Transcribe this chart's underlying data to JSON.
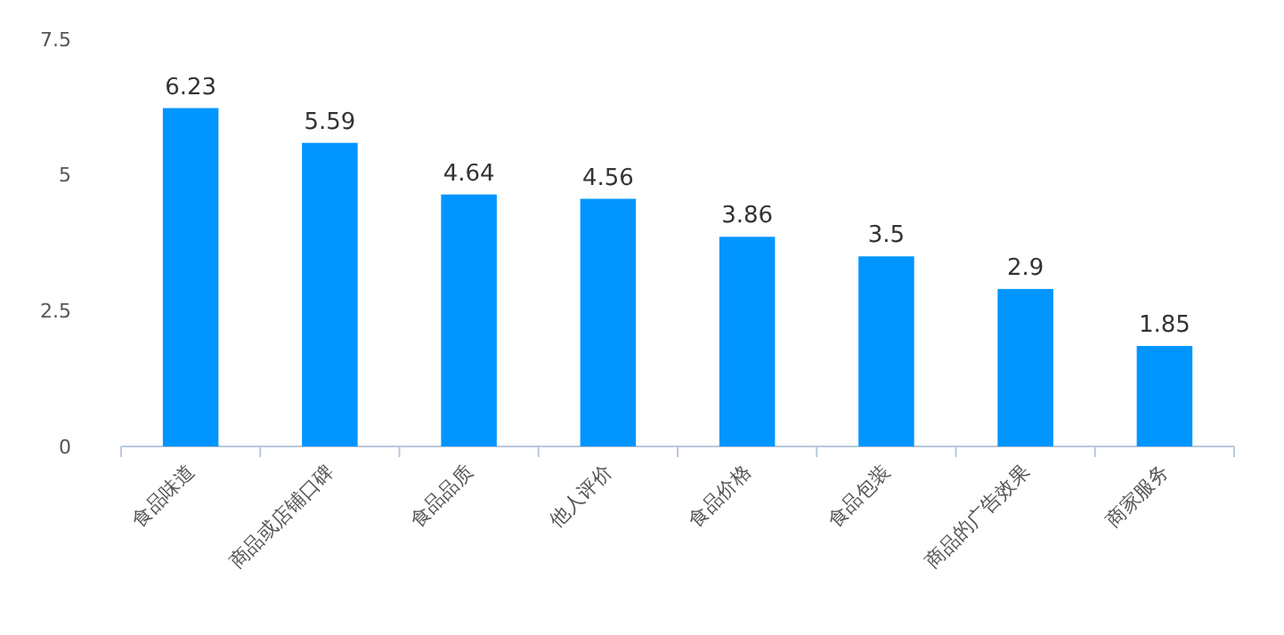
{
  "chart_data": {
    "type": "bar",
    "categories": [
      "食品味道",
      "商品或店铺口碑",
      "食品品质",
      "他人评价",
      "食品价格",
      "食品包装",
      "商品的广告效果",
      "商家服务"
    ],
    "values": [
      6.23,
      5.59,
      4.64,
      4.56,
      3.86,
      3.5,
      2.9,
      1.85
    ],
    "color": "#0095ff",
    "data_labels": true,
    "ylim": [
      0,
      7.5
    ],
    "yticks": [
      0,
      2.5,
      5,
      7.5
    ],
    "grid": false
  }
}
